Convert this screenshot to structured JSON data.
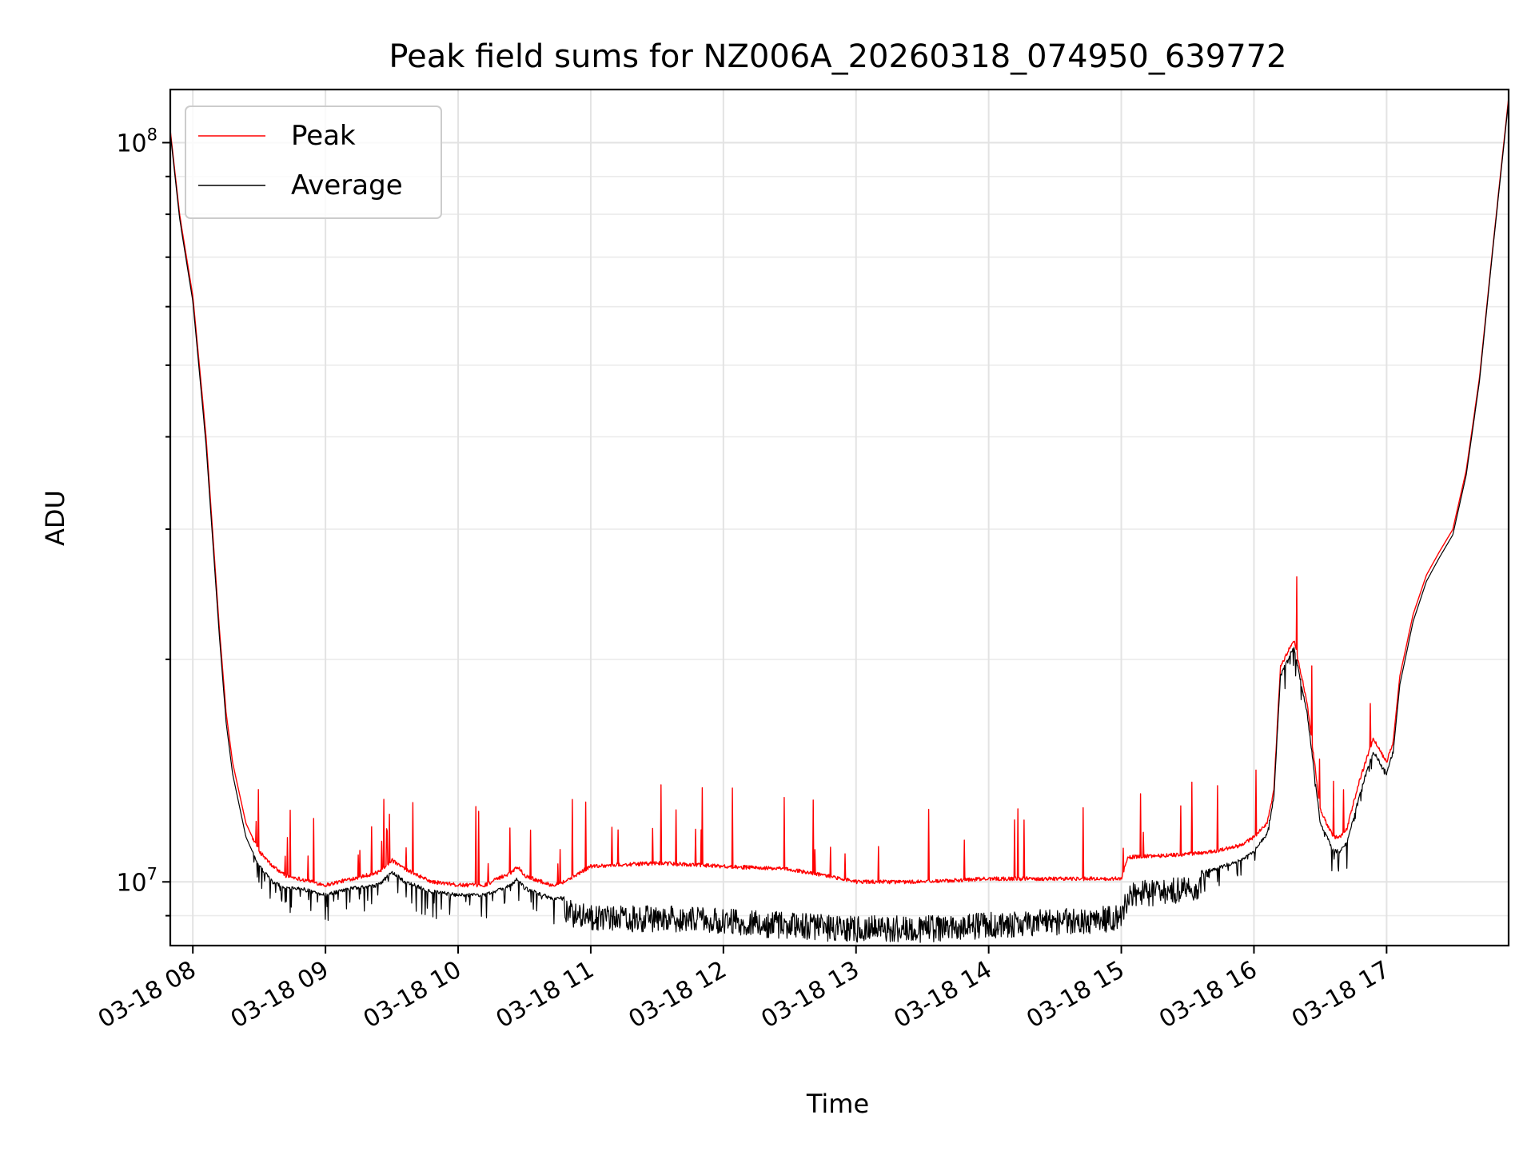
{
  "chart_data": {
    "type": "line",
    "title": "Peak field sums for NZ006A_20260318_074950_639772",
    "xlabel": "Time",
    "ylabel": "ADU",
    "yscale": "log",
    "xlim": [
      7.83,
      17.92
    ],
    "ylim": [
      8200000,
      118000000
    ],
    "xticks": [
      {
        "t": 8,
        "label": "03-18 08"
      },
      {
        "t": 9,
        "label": "03-18 09"
      },
      {
        "t": 10,
        "label": "03-18 10"
      },
      {
        "t": 11,
        "label": "03-18 11"
      },
      {
        "t": 12,
        "label": "03-18 12"
      },
      {
        "t": 13,
        "label": "03-18 13"
      },
      {
        "t": 14,
        "label": "03-18 14"
      },
      {
        "t": 15,
        "label": "03-18 15"
      },
      {
        "t": 16,
        "label": "03-18 16"
      },
      {
        "t": 17,
        "label": "03-18 17"
      }
    ],
    "yticks": [
      {
        "v": 10000000,
        "base": "10",
        "exp": "7"
      },
      {
        "v": 100000000,
        "base": "10",
        "exp": "8"
      }
    ],
    "grid": true,
    "legend": {
      "position": "upper-left",
      "entries": [
        {
          "name": "Peak",
          "color": "#ff0000"
        },
        {
          "name": "Average",
          "color": "#000000"
        }
      ]
    },
    "series": [
      {
        "name": "Peak",
        "color": "#ff0000",
        "x": [
          7.83,
          7.9,
          8.0,
          8.1,
          8.2,
          8.25,
          8.3,
          8.4,
          8.5,
          8.6,
          8.7,
          8.8,
          8.9,
          9.0,
          9.2,
          9.4,
          9.5,
          9.6,
          9.8,
          10.0,
          10.2,
          10.4,
          10.45,
          10.5,
          10.7,
          10.8,
          11.0,
          11.5,
          12.0,
          12.5,
          12.9,
          13.0,
          13.5,
          14.0,
          14.5,
          15.0,
          15.05,
          15.5,
          15.7,
          15.9,
          16.0,
          16.1,
          16.15,
          16.2,
          16.3,
          16.4,
          16.5,
          16.6,
          16.65,
          16.7,
          16.8,
          16.9,
          17.0,
          17.05,
          17.1,
          17.2,
          17.3,
          17.4,
          17.5,
          17.6,
          17.7,
          17.8,
          17.92
        ],
        "y": [
          104000000,
          80000000,
          62000000,
          40000000,
          22000000,
          17000000,
          14500000,
          12000000,
          11000000,
          10500000,
          10200000,
          10100000,
          10000000,
          9900000,
          10100000,
          10300000,
          10700000,
          10400000,
          10000000,
          9900000,
          9900000,
          10300000,
          10500000,
          10200000,
          9900000,
          10000000,
          10500000,
          10600000,
          10500000,
          10400000,
          10100000,
          10000000,
          10000000,
          10100000,
          10100000,
          10100000,
          10800000,
          10900000,
          11000000,
          11200000,
          11500000,
          12000000,
          13300000,
          19500000,
          21300000,
          17500000,
          12500000,
          11500000,
          11500000,
          11800000,
          13800000,
          15600000,
          14500000,
          15500000,
          19000000,
          23000000,
          26000000,
          28000000,
          30000000,
          36000000,
          48000000,
          72000000,
          115000000
        ]
      },
      {
        "name": "Average",
        "color": "#000000",
        "x": [
          7.83,
          7.9,
          8.0,
          8.1,
          8.2,
          8.25,
          8.3,
          8.4,
          8.5,
          8.6,
          8.7,
          8.8,
          8.9,
          9.0,
          9.2,
          9.4,
          9.5,
          9.6,
          9.8,
          10.0,
          10.2,
          10.4,
          10.45,
          10.5,
          10.7,
          10.8,
          11.0,
          11.5,
          12.0,
          12.5,
          12.9,
          13.0,
          13.5,
          14.0,
          14.5,
          15.0,
          15.05,
          15.5,
          15.7,
          15.9,
          16.0,
          16.1,
          16.15,
          16.2,
          16.3,
          16.4,
          16.5,
          16.6,
          16.65,
          16.7,
          16.8,
          16.9,
          17.0,
          17.05,
          17.1,
          17.2,
          17.3,
          17.4,
          17.5,
          17.6,
          17.7,
          17.8,
          17.92
        ],
        "y": [
          103000000,
          79000000,
          61000000,
          39000000,
          21500000,
          16500000,
          14000000,
          11500000,
          10500000,
          10000000,
          9800000,
          9800000,
          9700000,
          9600000,
          9800000,
          9900000,
          10300000,
          10000000,
          9700000,
          9600000,
          9600000,
          9900000,
          10100000,
          9800000,
          9500000,
          9500000,
          9300000,
          9300000,
          9200000,
          9100000,
          9000000,
          9000000,
          9000000,
          9100000,
          9200000,
          9300000,
          10000000,
          10200000,
          10400000,
          10700000,
          11000000,
          11600000,
          13000000,
          19000000,
          20800000,
          17000000,
          12000000,
          11000000,
          11000000,
          11300000,
          13200000,
          15000000,
          14000000,
          15000000,
          18500000,
          22500000,
          25500000,
          27500000,
          29500000,
          35500000,
          47500000,
          71500000,
          114000000
        ]
      }
    ]
  }
}
